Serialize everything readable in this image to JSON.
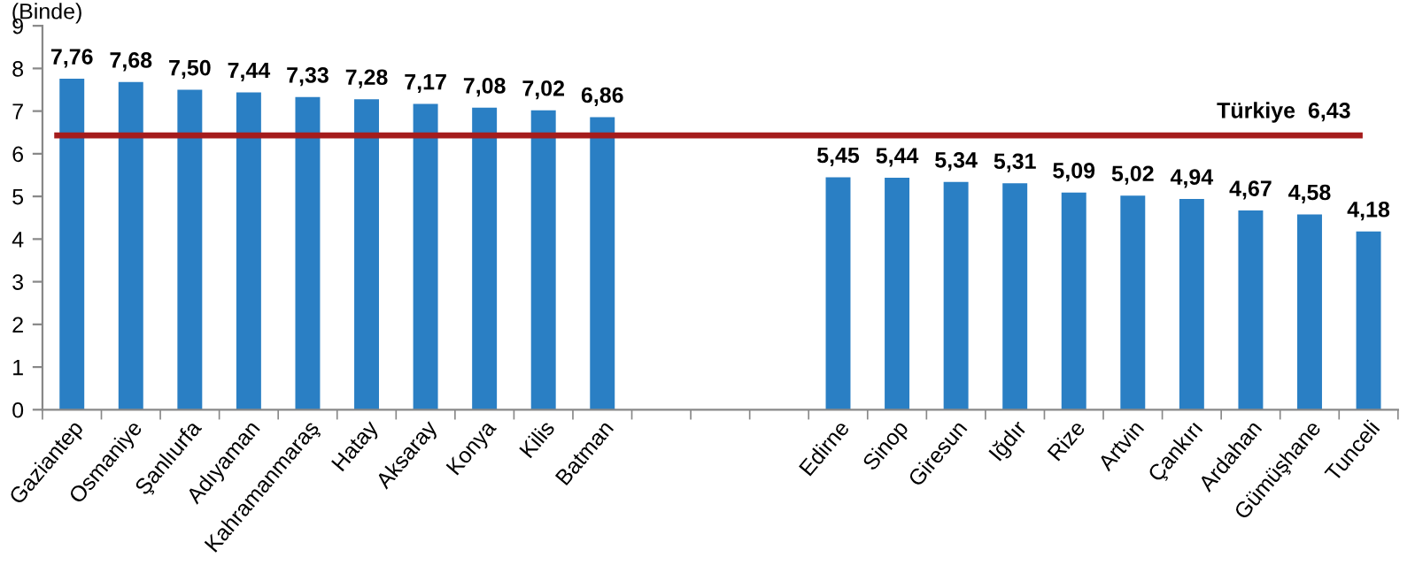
{
  "chart_data": {
    "type": "bar",
    "ylabel": "(Binde)",
    "categories": [
      "Gaziantep",
      "Osmaniye",
      "Şanlıurfa",
      "Adıyaman",
      "Kahramanmaraş",
      "Hatay",
      "Aksaray",
      "Konya",
      "Kilis",
      "Batman",
      null,
      null,
      null,
      "Edirne",
      "Sinop",
      "Giresun",
      "Iğdır",
      "Rize",
      "Artvin",
      "Çankırı",
      "Ardahan",
      "Gümüşhane",
      "Tunceli"
    ],
    "values": [
      7.76,
      7.68,
      7.5,
      7.44,
      7.33,
      7.28,
      7.17,
      7.08,
      7.02,
      6.86,
      null,
      null,
      null,
      5.45,
      5.44,
      5.34,
      5.31,
      5.09,
      5.02,
      4.94,
      4.67,
      4.58,
      4.18
    ],
    "value_labels": [
      "7,76",
      "7,68",
      "7,50",
      "7,44",
      "7,33",
      "7,28",
      "7,17",
      "7,08",
      "7,02",
      "6,86",
      null,
      null,
      null,
      "5,45",
      "5,44",
      "5,34",
      "5,31",
      "5,09",
      "5,02",
      "4,94",
      "4,67",
      "4,58",
      "4,18"
    ],
    "color": "#2a7fc4",
    "ylim": [
      0,
      9
    ],
    "yticks": [
      0,
      1,
      2,
      3,
      4,
      5,
      6,
      7,
      8,
      9
    ],
    "ref_lines": [
      {
        "axis": "y",
        "value": 6.43,
        "label": "Türkiye  6,43",
        "color": "#a51c1c",
        "line_style": "solid"
      }
    ],
    "grid": false,
    "legend": false
  }
}
